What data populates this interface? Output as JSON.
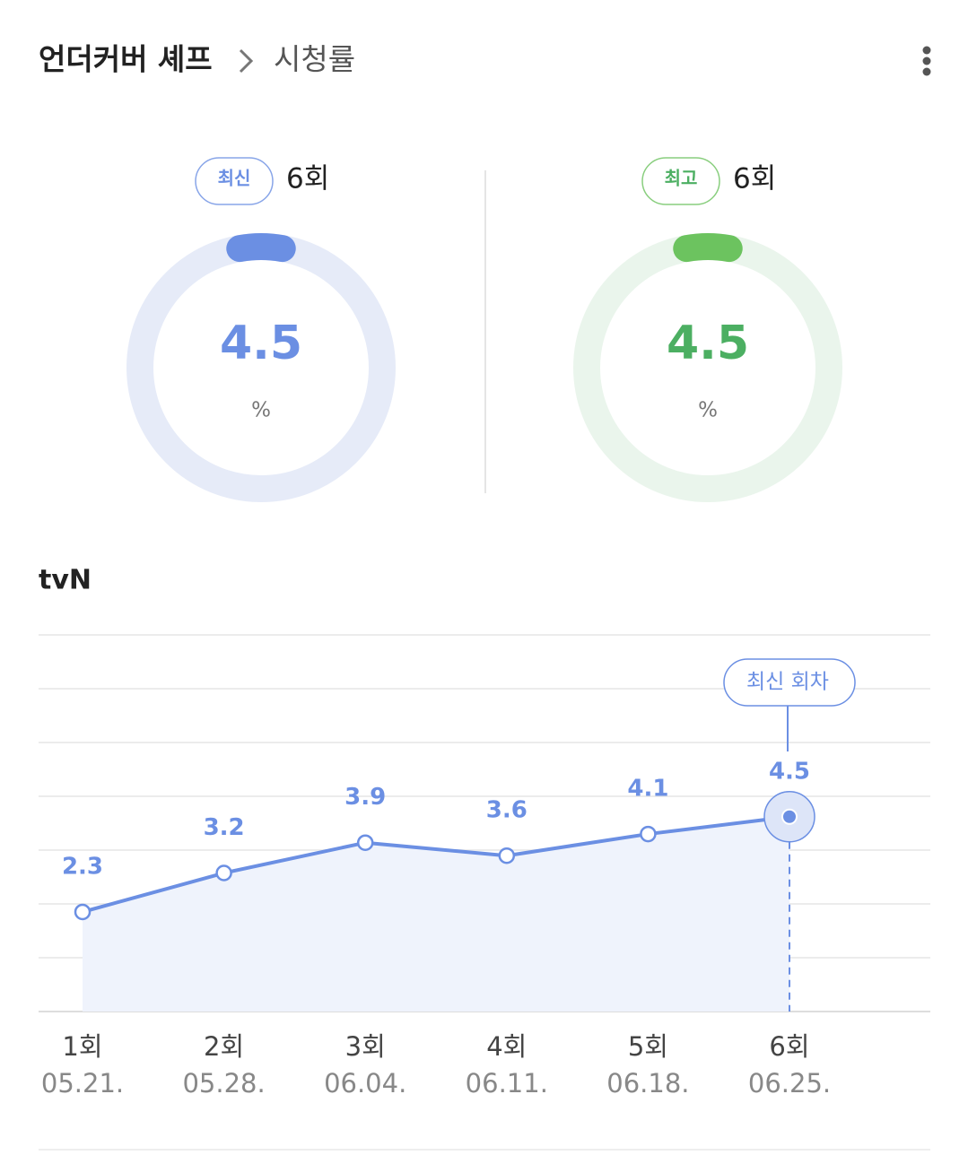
{
  "header": {
    "title": "언더커버 셰프",
    "subtitle": "시청률"
  },
  "summary": [
    {
      "badge": "최신",
      "episode": "6회",
      "value": 4.5,
      "unit": "%",
      "color": "#6b8fe3",
      "track": "#e6ebf8",
      "text_color": "#6b8fe3"
    },
    {
      "badge": "최고",
      "episode": "6회",
      "value": 4.5,
      "unit": "%",
      "color": "#6cc35f",
      "track": "#eaf5ec",
      "text_color": "#4caf62"
    }
  ],
  "chart_data": {
    "type": "line",
    "title": "tvN",
    "categories": [
      "1회",
      "2회",
      "3회",
      "4회",
      "5회",
      "6회"
    ],
    "dates": [
      "05.21.",
      "05.28.",
      "06.04.",
      "06.11.",
      "06.18.",
      "06.25."
    ],
    "values": [
      2.3,
      3.2,
      3.9,
      3.6,
      4.1,
      4.5
    ],
    "color": "#6b8fe3",
    "ylim": [
      0,
      8.7
    ],
    "grid": true,
    "annotation": "최신 회차"
  }
}
